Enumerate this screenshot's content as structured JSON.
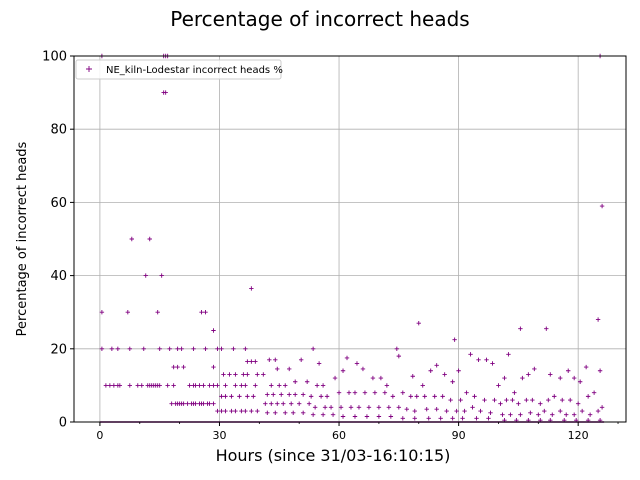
{
  "chart_data": {
    "type": "scatter",
    "title": "Percentage of incorrect heads",
    "xlabel": "Hours (since 31/03-16:10:15)",
    "ylabel": "Percentage of incorrect heads",
    "xlim": [
      -6.5,
      132
    ],
    "ylim": [
      0,
      100
    ],
    "xticks": [
      0,
      30,
      60,
      90,
      120
    ],
    "yticks": [
      0,
      20,
      40,
      60,
      80,
      100
    ],
    "grid": true,
    "legend_position": "upper-left",
    "series": [
      {
        "name": "NE_kiln-Lodestar incorrect heads %",
        "color": "#800080",
        "marker": "+",
        "points": [
          [
            0.5,
            100
          ],
          [
            125.5,
            100
          ],
          [
            16,
            100
          ],
          [
            16.5,
            100
          ],
          [
            17,
            100
          ],
          [
            16,
            90
          ],
          [
            16.5,
            90
          ],
          [
            126,
            59
          ],
          [
            125,
            28
          ],
          [
            8,
            50
          ],
          [
            12.5,
            50
          ],
          [
            11.5,
            40
          ],
          [
            15.5,
            40
          ],
          [
            38,
            36.5
          ],
          [
            0.5,
            30
          ],
          [
            7,
            30
          ],
          [
            14.5,
            30
          ],
          [
            25.5,
            30
          ],
          [
            26.5,
            30
          ],
          [
            28.5,
            25
          ],
          [
            0.5,
            20
          ],
          [
            3,
            20
          ],
          [
            4.5,
            20
          ],
          [
            7.5,
            20
          ],
          [
            11,
            20
          ],
          [
            15,
            20
          ],
          [
            17.5,
            20
          ],
          [
            19.5,
            20
          ],
          [
            20.5,
            20
          ],
          [
            23.5,
            20
          ],
          [
            26.5,
            20
          ],
          [
            29.5,
            20
          ],
          [
            30.5,
            20
          ],
          [
            33.5,
            20
          ],
          [
            36.5,
            20
          ],
          [
            1.5,
            10
          ],
          [
            2.5,
            10
          ],
          [
            3.5,
            10
          ],
          [
            4.5,
            10
          ],
          [
            5,
            10
          ],
          [
            7.5,
            10
          ],
          [
            9.5,
            10
          ],
          [
            10.5,
            10
          ],
          [
            12,
            10
          ],
          [
            12.5,
            10
          ],
          [
            13,
            10
          ],
          [
            13.5,
            10
          ],
          [
            14,
            10
          ],
          [
            14.5,
            10
          ],
          [
            15,
            10
          ],
          [
            17,
            10
          ],
          [
            18.5,
            10
          ],
          [
            22.5,
            10
          ],
          [
            23.5,
            10
          ],
          [
            24,
            10
          ],
          [
            25,
            10
          ],
          [
            26,
            10
          ],
          [
            27.5,
            10
          ],
          [
            28.5,
            10
          ],
          [
            29.5,
            10
          ],
          [
            31.5,
            10
          ],
          [
            34,
            10
          ],
          [
            35.5,
            10
          ],
          [
            36.5,
            10
          ],
          [
            39,
            10
          ],
          [
            18.5,
            15
          ],
          [
            19.5,
            15
          ],
          [
            21,
            15
          ],
          [
            28.5,
            15
          ],
          [
            31,
            13
          ],
          [
            32.5,
            13
          ],
          [
            34,
            13
          ],
          [
            36,
            13
          ],
          [
            37,
            13
          ],
          [
            39.5,
            13
          ],
          [
            41,
            13
          ],
          [
            18,
            5
          ],
          [
            19,
            5
          ],
          [
            19.5,
            5
          ],
          [
            20,
            5
          ],
          [
            20.5,
            5
          ],
          [
            21,
            5
          ],
          [
            22,
            5
          ],
          [
            23,
            5
          ],
          [
            23.5,
            5
          ],
          [
            24,
            5
          ],
          [
            25,
            5
          ],
          [
            25.5,
            5
          ],
          [
            26,
            5
          ],
          [
            27,
            5
          ],
          [
            27.5,
            5
          ],
          [
            28.5,
            5
          ],
          [
            30.5,
            7
          ],
          [
            31.5,
            7
          ],
          [
            33,
            7
          ],
          [
            35,
            7
          ],
          [
            37,
            7
          ],
          [
            38.5,
            7
          ],
          [
            29.5,
            3
          ],
          [
            30.5,
            3
          ],
          [
            31.5,
            3
          ],
          [
            33,
            3
          ],
          [
            34,
            3
          ],
          [
            35.5,
            3
          ],
          [
            36.5,
            3
          ],
          [
            38,
            3
          ],
          [
            39.5,
            3
          ],
          [
            37,
            16.5
          ],
          [
            38,
            16.5
          ],
          [
            39,
            16.5
          ],
          [
            42.5,
            17
          ],
          [
            44,
            17
          ],
          [
            50.5,
            17
          ],
          [
            53.5,
            20
          ],
          [
            55,
            16
          ],
          [
            44.5,
            14.5
          ],
          [
            47.5,
            14.5
          ],
          [
            43,
            10
          ],
          [
            45,
            10
          ],
          [
            46.5,
            10
          ],
          [
            49,
            11
          ],
          [
            52,
            11
          ],
          [
            54.5,
            10
          ],
          [
            56,
            10
          ],
          [
            42,
            7.5
          ],
          [
            43.5,
            7.5
          ],
          [
            45.5,
            7.5
          ],
          [
            47.5,
            7.5
          ],
          [
            49,
            7.5
          ],
          [
            51,
            7.5
          ],
          [
            53,
            7
          ],
          [
            55.5,
            7
          ],
          [
            57,
            7
          ],
          [
            41.5,
            5
          ],
          [
            43,
            5
          ],
          [
            44.5,
            5
          ],
          [
            46,
            5
          ],
          [
            48,
            5
          ],
          [
            50,
            5
          ],
          [
            52.5,
            5
          ],
          [
            54,
            4
          ],
          [
            56.5,
            4
          ],
          [
            58,
            4
          ],
          [
            42,
            2.5
          ],
          [
            44,
            2.5
          ],
          [
            46.5,
            2.5
          ],
          [
            48.5,
            2.5
          ],
          [
            51,
            2.5
          ],
          [
            53.5,
            2
          ],
          [
            56,
            2
          ],
          [
            58.5,
            2
          ],
          [
            59,
            12
          ],
          [
            61,
            14
          ],
          [
            62,
            17.5
          ],
          [
            64.5,
            16
          ],
          [
            66,
            14.5
          ],
          [
            68.5,
            12
          ],
          [
            70.5,
            12
          ],
          [
            72,
            10
          ],
          [
            74.5,
            20
          ],
          [
            75,
            18
          ],
          [
            78.5,
            12.5
          ],
          [
            80,
            27
          ],
          [
            60,
            8
          ],
          [
            62.5,
            8
          ],
          [
            64,
            8
          ],
          [
            66.5,
            8
          ],
          [
            69,
            8
          ],
          [
            71.5,
            8
          ],
          [
            73.5,
            7
          ],
          [
            76,
            8
          ],
          [
            78,
            7
          ],
          [
            79.5,
            7
          ],
          [
            60.5,
            4
          ],
          [
            63,
            4
          ],
          [
            65,
            4
          ],
          [
            67.5,
            4
          ],
          [
            70,
            4
          ],
          [
            72.5,
            4
          ],
          [
            75,
            4
          ],
          [
            77,
            3.5
          ],
          [
            79,
            3
          ],
          [
            61,
            1.5
          ],
          [
            64,
            1.5
          ],
          [
            67,
            1.5
          ],
          [
            70,
            1.5
          ],
          [
            73,
            1.5
          ],
          [
            76,
            1
          ],
          [
            79,
            1
          ],
          [
            81,
            10
          ],
          [
            83,
            14
          ],
          [
            84.5,
            15.5
          ],
          [
            86.5,
            13
          ],
          [
            88.5,
            11
          ],
          [
            89,
            22.5
          ],
          [
            90,
            14
          ],
          [
            93,
            18.5
          ],
          [
            95,
            17
          ],
          [
            97,
            17
          ],
          [
            98.5,
            16
          ],
          [
            81.5,
            7
          ],
          [
            84,
            7
          ],
          [
            86,
            7
          ],
          [
            88,
            6
          ],
          [
            90.5,
            6
          ],
          [
            92,
            8
          ],
          [
            94,
            7
          ],
          [
            96.5,
            6
          ],
          [
            99,
            6
          ],
          [
            82,
            3.5
          ],
          [
            84.5,
            3.5
          ],
          [
            87,
            3
          ],
          [
            89.5,
            3
          ],
          [
            91.5,
            3
          ],
          [
            93.5,
            4
          ],
          [
            95.5,
            3
          ],
          [
            98,
            2.5
          ],
          [
            82.5,
            1
          ],
          [
            85.5,
            1
          ],
          [
            88.5,
            1
          ],
          [
            91,
            1
          ],
          [
            94.5,
            1
          ],
          [
            97.5,
            1
          ],
          [
            100,
            10
          ],
          [
            101.5,
            12
          ],
          [
            102.5,
            18.5
          ],
          [
            104,
            8
          ],
          [
            105.5,
            25.5
          ],
          [
            106,
            12
          ],
          [
            107.5,
            13
          ],
          [
            109,
            14.5
          ],
          [
            112,
            25.5
          ],
          [
            113,
            13
          ],
          [
            115.5,
            12
          ],
          [
            117.5,
            14
          ],
          [
            119,
            12
          ],
          [
            120.5,
            11
          ],
          [
            122,
            15
          ],
          [
            100.5,
            5
          ],
          [
            102,
            6
          ],
          [
            103.5,
            6
          ],
          [
            105,
            5
          ],
          [
            107,
            6
          ],
          [
            108.5,
            6
          ],
          [
            110.5,
            5
          ],
          [
            112.5,
            6
          ],
          [
            114,
            7
          ],
          [
            116,
            6
          ],
          [
            118,
            6
          ],
          [
            120,
            5
          ],
          [
            122.5,
            7
          ],
          [
            124,
            8
          ],
          [
            125.5,
            14
          ],
          [
            101,
            2
          ],
          [
            103,
            2
          ],
          [
            105.5,
            2
          ],
          [
            108,
            2.5
          ],
          [
            110,
            2
          ],
          [
            111.5,
            3
          ],
          [
            113.5,
            2
          ],
          [
            115.5,
            3
          ],
          [
            117,
            2
          ],
          [
            119,
            2
          ],
          [
            121,
            3
          ],
          [
            123,
            2
          ],
          [
            125,
            3
          ],
          [
            126,
            4
          ],
          [
            101.5,
            0.5
          ],
          [
            104.5,
            0.5
          ],
          [
            107.5,
            0.5
          ],
          [
            110.5,
            0.5
          ],
          [
            113,
            0.5
          ],
          [
            116.5,
            0.5
          ],
          [
            119.5,
            0.5
          ],
          [
            122.5,
            0.5
          ],
          [
            125.5,
            0.5
          ]
        ],
        "zero_baseline": {
          "x_start": 0,
          "x_end": 126.5,
          "y": 0
        }
      }
    ]
  }
}
